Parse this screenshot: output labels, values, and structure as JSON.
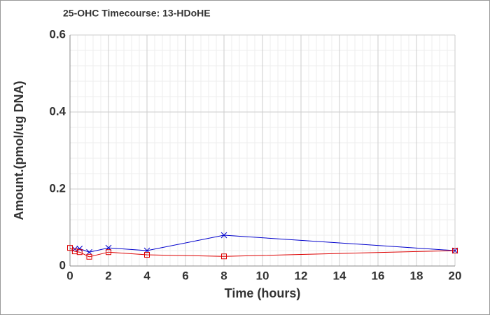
{
  "chart_data": {
    "type": "line",
    "title": "25-OHC Timecourse: 13-HDoHE",
    "x_label": "Time (hours)",
    "y_label": "Amount.(pmol/ug DNA)",
    "x": [
      0,
      0.25,
      0.5,
      1,
      2,
      4,
      8,
      20
    ],
    "series": [
      {
        "color": "#0000cc",
        "marker": "x",
        "values": [
          null,
          0.044,
          0.045,
          0.036,
          0.047,
          0.04,
          0.08,
          0.04
        ]
      },
      {
        "color": "#dd0000",
        "marker": "square",
        "values": [
          0.047,
          0.038,
          0.036,
          0.024,
          0.036,
          0.029,
          0.025,
          0.04
        ]
      }
    ],
    "xlim": [
      0,
      20
    ],
    "xticks": [
      0,
      2,
      4,
      6,
      8,
      10,
      12,
      14,
      16,
      18,
      20
    ],
    "ylim": [
      0,
      0.6
    ],
    "yticks": [
      0,
      0.2,
      0.4,
      0.6
    ],
    "grid": true,
    "minor_grid": true
  }
}
